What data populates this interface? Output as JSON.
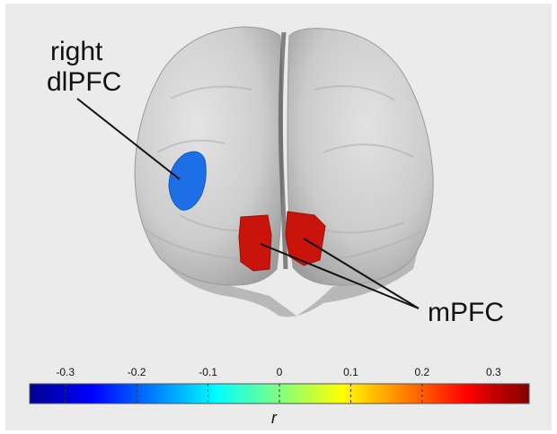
{
  "labels": {
    "dlpfc_line1": "right",
    "dlpfc_line2": "dlPFC",
    "mpfc": "mPFC"
  },
  "colorbar": {
    "label": "r",
    "min": -0.35,
    "max": 0.35,
    "ticks": [
      "-0.3",
      "-0.2",
      "-0.1",
      "0",
      "0.1",
      "0.2",
      "0.3"
    ],
    "tick_values": [
      -0.3,
      -0.2,
      -0.1,
      0,
      0.1,
      0.2,
      0.3
    ],
    "colormap": [
      "#00008f",
      "#0000ff",
      "#0080ff",
      "#00ffff",
      "#80ff80",
      "#ffff00",
      "#ff8000",
      "#ff0000",
      "#800000"
    ]
  },
  "colors": {
    "background": "#ebebeb",
    "brain": "#c8c8c8",
    "dlpfc_region": "#1e6fe6",
    "mpfc_region": "#c8140a"
  }
}
